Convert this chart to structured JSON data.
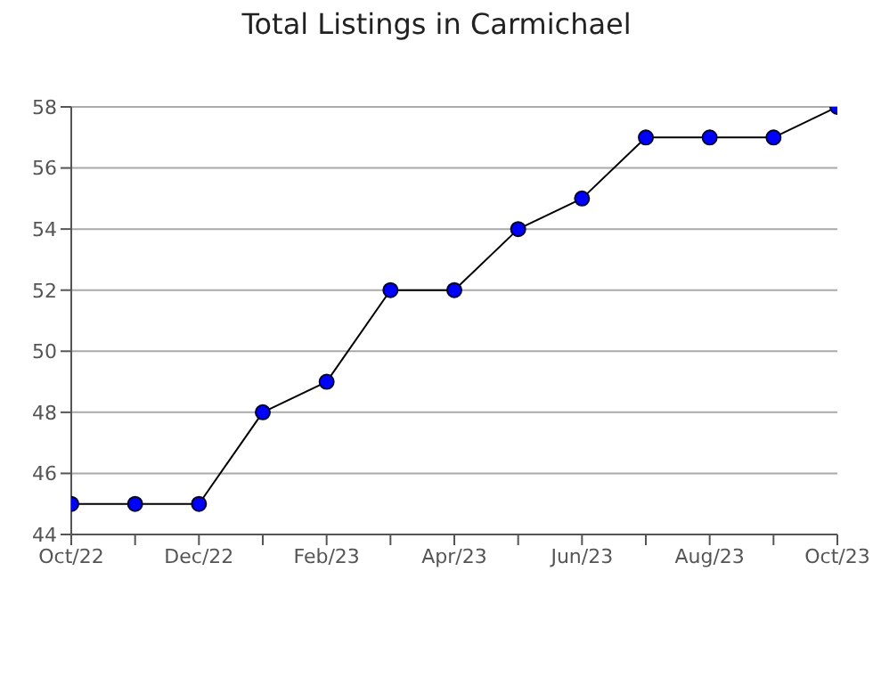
{
  "chart_data": {
    "type": "line",
    "title": "Total Listings in Carmichael",
    "categories": [
      "Oct/22",
      null,
      "Dec/22",
      null,
      "Feb/23",
      null,
      "Apr/23",
      null,
      "Jun/23",
      null,
      "Aug/23",
      null,
      "Oct/23"
    ],
    "series": [
      {
        "color": "#0000ff",
        "values": [
          45,
          45,
          45,
          48,
          49,
          52,
          52,
          54,
          55,
          57,
          57,
          57,
          58
        ]
      }
    ],
    "ylim": [
      44,
      58
    ],
    "yticks": [
      44,
      46,
      48,
      50,
      52,
      54,
      56,
      58
    ],
    "grid": "y",
    "marker": "circle",
    "line_style": "solid",
    "legend": false
  }
}
